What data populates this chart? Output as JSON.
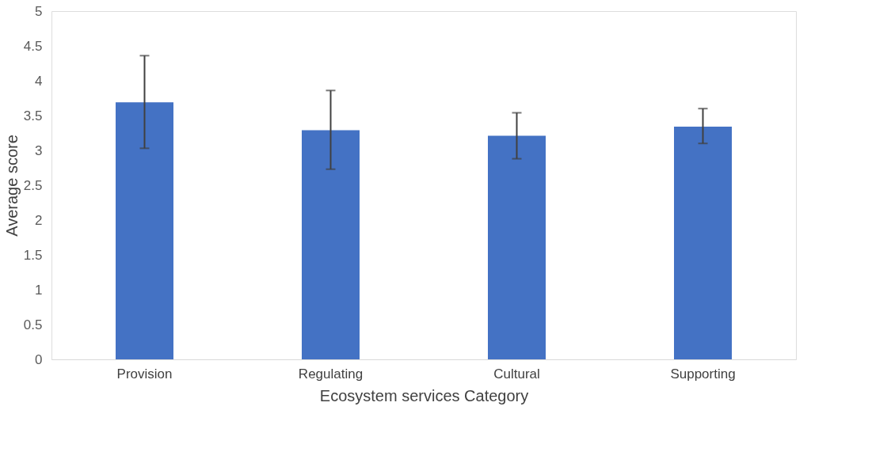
{
  "chart_data": {
    "type": "bar",
    "xlabel": "Ecosystem services Category",
    "ylabel": "Average score",
    "categories": [
      "Provision",
      "Regulating",
      "Cultural",
      "Supporting"
    ],
    "values": [
      3.69,
      3.29,
      3.21,
      3.34
    ],
    "errors": [
      [
        3.03,
        4.36
      ],
      [
        2.73,
        3.86
      ],
      [
        2.88,
        3.54
      ],
      [
        3.1,
        3.6
      ]
    ],
    "color": "#4472c4",
    "ylim": [
      0,
      5
    ],
    "yticks": [
      0,
      0.5,
      1,
      1.5,
      2,
      2.5,
      3,
      3.5,
      4,
      4.5,
      5
    ],
    "grid": false
  }
}
